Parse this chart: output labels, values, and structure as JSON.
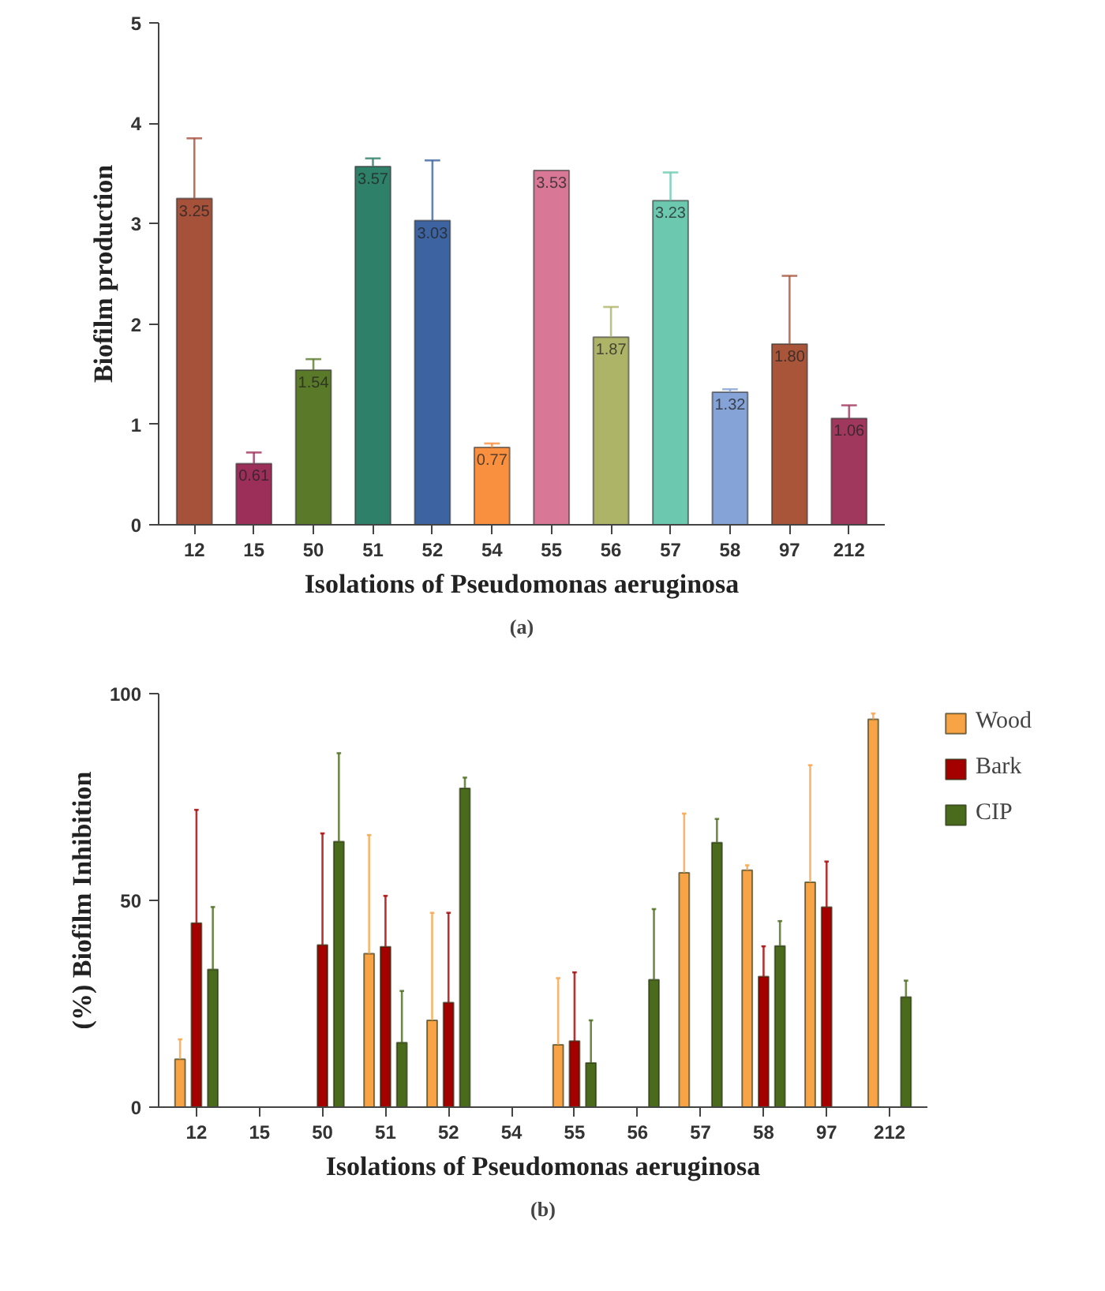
{
  "chart_data": [
    {
      "type": "bar",
      "ylabel": "Biofilm production",
      "xlabel": "Isolations of Pseudomonas aeruginosa",
      "categories": [
        "12",
        "15",
        "50",
        "51",
        "52",
        "54",
        "55",
        "56",
        "57",
        "58",
        "97",
        "212"
      ],
      "values": [
        3.25,
        0.61,
        1.54,
        3.57,
        3.03,
        0.77,
        3.53,
        1.87,
        3.23,
        1.32,
        1.8,
        1.06
      ],
      "value_labels": [
        "3.25",
        "0.61",
        "1.54",
        "3.57",
        "3.03",
        "0.77",
        "3.53",
        "1.87",
        "3.23",
        "1.32",
        "1.80",
        "1.06"
      ],
      "errors": [
        [
          3.25,
          3.85
        ],
        [
          0.61,
          0.72
        ],
        [
          1.54,
          1.65
        ],
        [
          3.57,
          3.65
        ],
        [
          3.03,
          3.63
        ],
        [
          0.77,
          0.81
        ],
        null,
        [
          1.87,
          2.17
        ],
        [
          3.23,
          3.51
        ],
        [
          1.32,
          1.35
        ],
        [
          1.8,
          2.48
        ],
        [
          1.06,
          1.19
        ]
      ],
      "colors": [
        "#a6513a",
        "#9c2f5a",
        "#5a7a2a",
        "#2e8068",
        "#3d64a0",
        "#f99040",
        "#d97896",
        "#aeb467",
        "#6cc9b0",
        "#85a3d6",
        "#a8553a",
        "#a0375c"
      ],
      "ylim": [
        0,
        5
      ],
      "yticks": [
        0,
        1,
        2,
        3,
        4,
        5
      ],
      "grid": false,
      "annotations": [
        "(a)"
      ]
    },
    {
      "type": "bar",
      "ylabel": "(%) Biofilm Inhibition",
      "xlabel": "Isolations of Pseudomonas aeruginosa",
      "categories": [
        "12",
        "15",
        "50",
        "51",
        "52",
        "54",
        "55",
        "56",
        "57",
        "58",
        "97",
        "212"
      ],
      "series": [
        {
          "name": "Wood",
          "color": "#f8a346",
          "values": [
            11.6,
            null,
            null,
            37.1,
            21.0,
            null,
            15.1,
            null,
            56.7,
            57.3,
            54.4,
            93.8
          ],
          "errors": [
            [
              11.6,
              16.4
            ],
            null,
            null,
            [
              37.1,
              65.8
            ],
            [
              21.0,
              47.0
            ],
            null,
            [
              15.1,
              31.2
            ],
            null,
            [
              56.7,
              71.0
            ],
            [
              57.3,
              58.5
            ],
            [
              54.4,
              82.7
            ],
            [
              93.8,
              95.2
            ]
          ]
        },
        {
          "name": "Bark",
          "color": "#a50000",
          "values": [
            44.5,
            null,
            39.2,
            38.8,
            25.3,
            null,
            16.0,
            null,
            null,
            31.6,
            48.4,
            null
          ],
          "errors": [
            [
              44.5,
              71.9
            ],
            null,
            [
              39.2,
              66.2
            ],
            [
              38.8,
              51.1
            ],
            [
              25.3,
              47.0
            ],
            null,
            [
              16.0,
              32.6
            ],
            null,
            null,
            [
              31.6,
              38.9
            ],
            [
              48.4,
              59.4
            ],
            null
          ]
        },
        {
          "name": "CIP",
          "color": "#4a6b1c",
          "values": [
            33.3,
            null,
            64.2,
            15.6,
            77.1,
            null,
            10.7,
            30.8,
            64.0,
            39.0,
            null,
            26.6
          ],
          "errors": [
            [
              33.3,
              48.4
            ],
            null,
            [
              64.2,
              85.6
            ],
            [
              15.6,
              28.1
            ],
            [
              77.1,
              79.7
            ],
            null,
            [
              10.7,
              21.0
            ],
            [
              30.8,
              47.9
            ],
            [
              64.0,
              69.7
            ],
            [
              39.0,
              45.0
            ],
            null,
            [
              26.6,
              30.6
            ]
          ]
        }
      ],
      "ylim": [
        0,
        100
      ],
      "yticks": [
        0,
        50,
        100
      ],
      "grid": false,
      "legend": "right",
      "annotations": [
        "(b)"
      ]
    }
  ]
}
